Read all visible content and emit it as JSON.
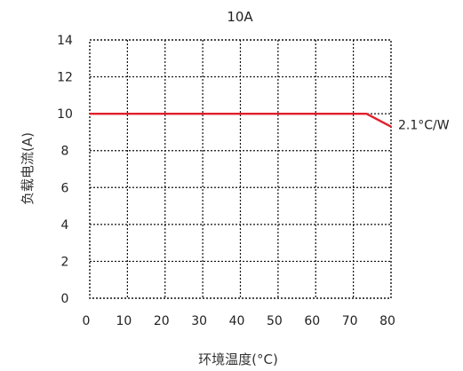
{
  "chart_data": {
    "type": "line",
    "title": "10A",
    "xlabel": "环境温度(°C)",
    "ylabel": "负载电流(A)",
    "xlim": [
      0,
      80
    ],
    "ylim": [
      0,
      14
    ],
    "xticks": [
      0,
      10,
      20,
      30,
      40,
      50,
      60,
      70,
      80
    ],
    "yticks": [
      0,
      2,
      4,
      6,
      8,
      10,
      12,
      14
    ],
    "grid": true,
    "series": [
      {
        "x": [
          0,
          73.5,
          80
        ],
        "y": [
          10,
          10,
          9.3
        ],
        "color": "#e0202a"
      }
    ],
    "annotations": [
      {
        "text": "2.1°C/W",
        "x": 80,
        "y": 9.3
      }
    ]
  }
}
